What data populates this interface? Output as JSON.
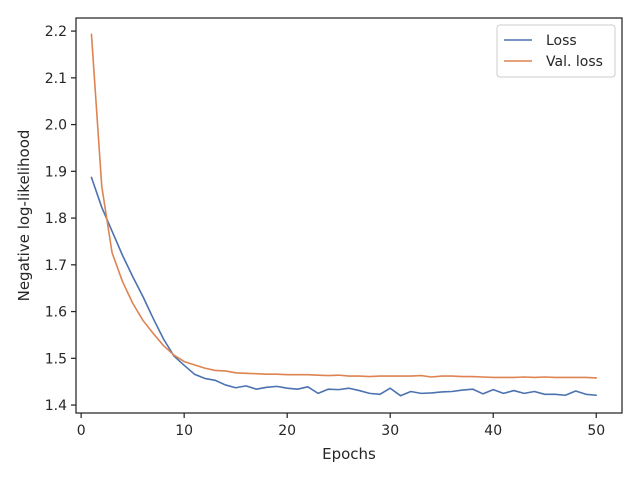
{
  "chart_data": {
    "type": "line",
    "xlabel": "Epochs",
    "ylabel": "Negative log-likelihood",
    "xlim": [
      -0.5,
      52.5
    ],
    "ylim": [
      1.383,
      2.228
    ],
    "xticks": [
      0,
      10,
      20,
      30,
      40,
      50
    ],
    "yticks": [
      1.4,
      1.5,
      1.6,
      1.7,
      1.8,
      1.9,
      2.0,
      2.1,
      2.2
    ],
    "grid": false,
    "legend_position": "top-right",
    "x": [
      1,
      2,
      3,
      4,
      5,
      6,
      7,
      8,
      9,
      10,
      11,
      12,
      13,
      14,
      15,
      16,
      17,
      18,
      19,
      20,
      21,
      22,
      23,
      24,
      25,
      26,
      27,
      28,
      29,
      30,
      31,
      32,
      33,
      34,
      35,
      36,
      37,
      38,
      39,
      40,
      41,
      42,
      43,
      44,
      45,
      46,
      47,
      48,
      49,
      50
    ],
    "series": [
      {
        "name": "Loss",
        "color": "#4c72b0",
        "values": [
          1.887,
          1.823,
          1.772,
          1.721,
          1.675,
          1.632,
          1.585,
          1.541,
          1.505,
          1.485,
          1.466,
          1.457,
          1.453,
          1.443,
          1.437,
          1.441,
          1.434,
          1.438,
          1.44,
          1.436,
          1.434,
          1.439,
          1.425,
          1.434,
          1.433,
          1.436,
          1.431,
          1.425,
          1.423,
          1.436,
          1.42,
          1.429,
          1.425,
          1.426,
          1.428,
          1.429,
          1.432,
          1.434,
          1.424,
          1.433,
          1.425,
          1.431,
          1.425,
          1.429,
          1.423,
          1.423,
          1.421,
          1.43,
          1.423,
          1.421
        ]
      },
      {
        "name": "Val. loss",
        "color": "#dd8452",
        "values": [
          2.193,
          1.868,
          1.726,
          1.665,
          1.618,
          1.581,
          1.553,
          1.527,
          1.507,
          1.493,
          1.486,
          1.479,
          1.474,
          1.473,
          1.469,
          1.468,
          1.467,
          1.466,
          1.466,
          1.465,
          1.465,
          1.465,
          1.464,
          1.463,
          1.464,
          1.462,
          1.462,
          1.461,
          1.462,
          1.462,
          1.462,
          1.462,
          1.463,
          1.46,
          1.462,
          1.462,
          1.461,
          1.461,
          1.46,
          1.459,
          1.459,
          1.459,
          1.46,
          1.459,
          1.46,
          1.459,
          1.459,
          1.459,
          1.459,
          1.458
        ]
      }
    ]
  }
}
